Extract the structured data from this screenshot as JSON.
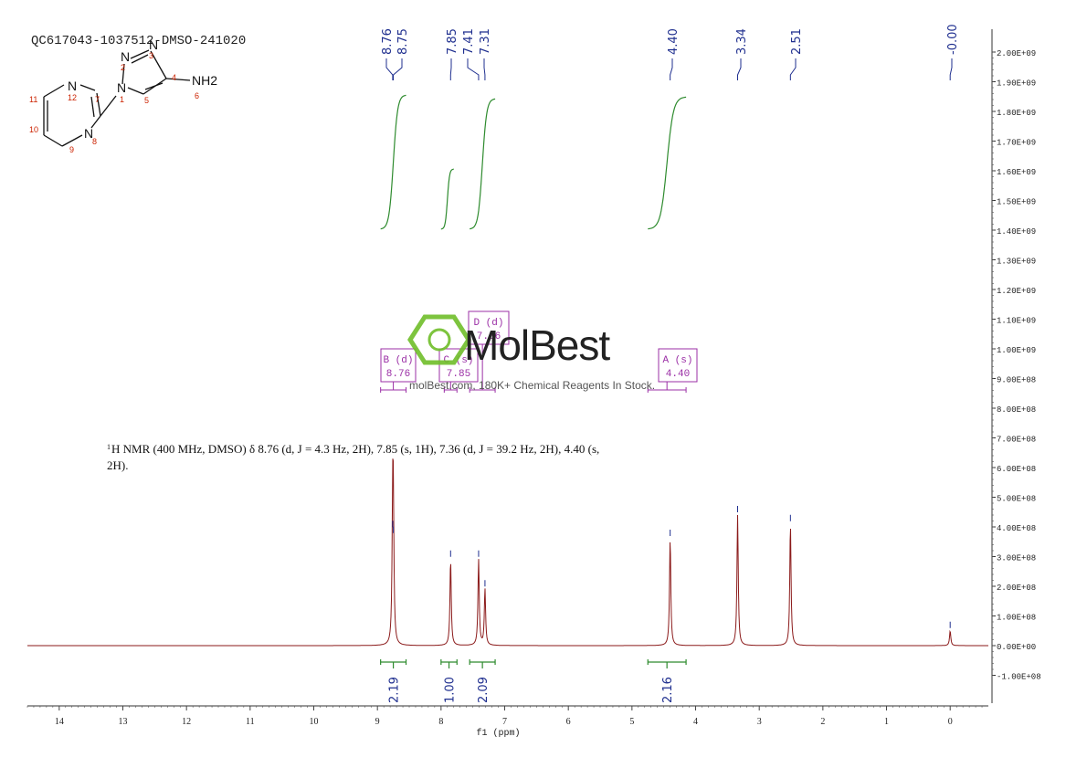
{
  "sample_id": "QC617043-1037512-DMSO-241020",
  "watermark": {
    "brand": "MolBest",
    "tagline": "molBest.com, 180K+ Chemical Reagents In Stock."
  },
  "structure": {
    "atom_labels": [
      "N",
      "N",
      "N",
      "N",
      "N",
      "NH2"
    ],
    "atom_numbers": [
      "1",
      "2",
      "3",
      "4",
      "5",
      "6",
      "7",
      "8",
      "9",
      "10",
      "11",
      "12"
    ]
  },
  "nmr_summary": {
    "prefix": "1",
    "text_line1": "H NMR (400 MHz, DMSO) δ 8.76 (d, J = 4.3 Hz, 2H), 7.85 (s, 1H), 7.36 (d, J = 39.2 Hz, 2H), 4.40 (s,",
    "text_line2": "2H)."
  },
  "colors": {
    "spectrum": "#8b1a1a",
    "integral": "#2e8b2e",
    "peak_label": "#1f2f8f",
    "multiplet_box": "#9b2fa6",
    "watermark": "#3c3c3c",
    "watermark_logo": "#6fbe2a",
    "structure_numbers": "#cc2200"
  },
  "chart_data": {
    "type": "line",
    "title": "",
    "xlabel": "f1 (ppm)",
    "ylabel": "",
    "x_reversed": true,
    "xlim": [
      14.5,
      -0.6
    ],
    "ylim": [
      -100000000.0,
      2000000000.0
    ],
    "x_ticks": [
      14,
      13,
      12,
      11,
      10,
      9,
      8,
      7,
      6,
      5,
      4,
      3,
      2,
      1,
      0
    ],
    "y_ticks": [
      {
        "value": 2000000000.0,
        "label": "2.00E+09"
      },
      {
        "value": 1900000000.0,
        "label": "1.90E+09"
      },
      {
        "value": 1800000000.0,
        "label": "1.80E+09"
      },
      {
        "value": 1700000000.0,
        "label": "1.70E+09"
      },
      {
        "value": 1600000000.0,
        "label": "1.60E+09"
      },
      {
        "value": 1500000000.0,
        "label": "1.50E+09"
      },
      {
        "value": 1400000000.0,
        "label": "1.40E+09"
      },
      {
        "value": 1300000000.0,
        "label": "1.30E+09"
      },
      {
        "value": 1200000000.0,
        "label": "1.20E+09"
      },
      {
        "value": 1100000000.0,
        "label": "1.10E+09"
      },
      {
        "value": 1000000000.0,
        "label": "1.00E+09"
      },
      {
        "value": 900000000.0,
        "label": "9.00E+08"
      },
      {
        "value": 800000000.0,
        "label": "8.00E+08"
      },
      {
        "value": 700000000.0,
        "label": "7.00E+08"
      },
      {
        "value": 600000000.0,
        "label": "6.00E+08"
      },
      {
        "value": 500000000.0,
        "label": "5.00E+08"
      },
      {
        "value": 400000000.0,
        "label": "4.00E+08"
      },
      {
        "value": 300000000.0,
        "label": "3.00E+08"
      },
      {
        "value": 200000000.0,
        "label": "2.00E+08"
      },
      {
        "value": 100000000.0,
        "label": "1.00E+08"
      },
      {
        "value": 0,
        "label": "0.00E+00"
      },
      {
        "value": -100000000.0,
        "label": "-1.00E+08"
      }
    ],
    "peaks": [
      {
        "ppm": 8.76,
        "height": 390000000.0
      },
      {
        "ppm": 8.75,
        "height": 370000000.0
      },
      {
        "ppm": 7.85,
        "height": 290000000.0
      },
      {
        "ppm": 7.41,
        "height": 290000000.0
      },
      {
        "ppm": 7.31,
        "height": 190000000.0
      },
      {
        "ppm": 4.4,
        "height": 360000000.0
      },
      {
        "ppm": 3.34,
        "height": 440000000.0
      },
      {
        "ppm": 2.51,
        "height": 410000000.0
      },
      {
        "ppm": 0.0,
        "height": 50000000.0
      }
    ],
    "peak_labels": [
      "8.76",
      "8.75",
      "7.85",
      "7.41",
      "7.31",
      "4.40",
      "3.34",
      "2.51",
      "-0.00"
    ],
    "integrals": [
      {
        "from": 8.95,
        "to": 8.55,
        "value": "2.19"
      },
      {
        "from": 8.0,
        "to": 7.75,
        "value": "1.00"
      },
      {
        "from": 7.55,
        "to": 7.15,
        "value": "2.09"
      },
      {
        "from": 4.75,
        "to": 4.15,
        "value": "2.16"
      }
    ],
    "multiplets": [
      {
        "letter": "B (d)",
        "shift": "8.76"
      },
      {
        "letter": "C (s)",
        "shift": "7.85"
      },
      {
        "letter": "D (d)",
        "shift": "7.36"
      },
      {
        "letter": "A (s)",
        "shift": "4.40"
      }
    ]
  }
}
